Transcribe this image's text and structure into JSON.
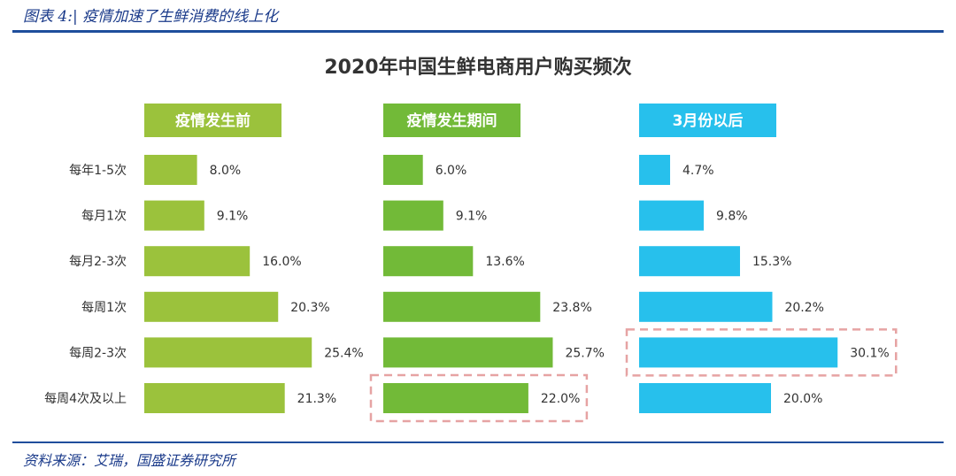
{
  "caption": "图表 4:| 疫情加速了生鲜消费的线上化",
  "source": "资料来源：艾瑞，国盛证券研究所",
  "colors": {
    "before": "#9bc23c",
    "during": "#72ba38",
    "after": "#27c0ec",
    "highlight_border": "#e6a3a3",
    "rule": "#1f4e9c"
  },
  "chart_data": {
    "type": "bar",
    "orientation": "horizontal",
    "title": "2020年中国生鲜电商用户购买频次",
    "categories": [
      "每年1-5次",
      "每月1次",
      "每月2-3次",
      "每周1次",
      "每周2-3次",
      "每周4次及以上"
    ],
    "series": [
      {
        "name": "疫情发生前",
        "values": [
          8.0,
          9.1,
          16.0,
          20.3,
          25.4,
          21.3
        ],
        "labels": [
          "8.0%",
          "9.1%",
          "16.0%",
          "20.3%",
          "25.4%",
          "21.3%"
        ]
      },
      {
        "name": "疫情发生期间",
        "values": [
          6.0,
          9.1,
          13.6,
          23.8,
          25.7,
          22.0
        ],
        "labels": [
          "6.0%",
          "9.1%",
          "13.6%",
          "23.8%",
          "25.7%",
          "22.0%"
        ],
        "highlight_index": 5
      },
      {
        "name": "3月份以后",
        "values": [
          4.7,
          9.8,
          15.3,
          20.2,
          30.1,
          20.0
        ],
        "labels": [
          "4.7%",
          "9.8%",
          "15.3%",
          "20.2%",
          "30.1%",
          "20.0%"
        ],
        "highlight_index": 4
      }
    ],
    "unit": "%",
    "grid": false
  }
}
